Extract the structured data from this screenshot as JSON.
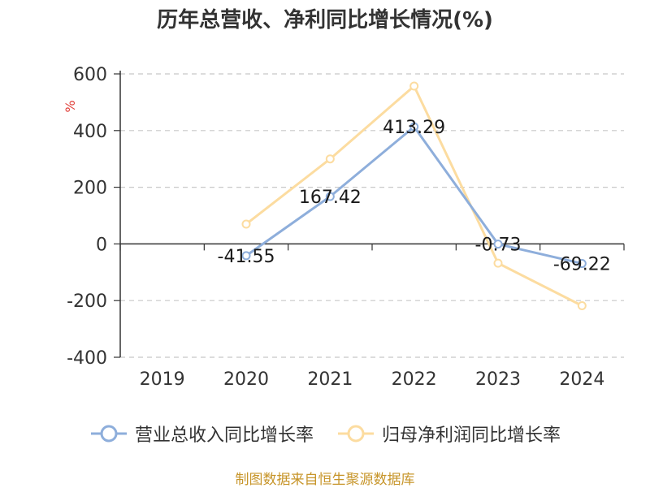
{
  "title": "历年总营收、净利同比增长情况(%)",
  "source": "制图数据来自恒生聚源数据库",
  "chart_data": {
    "type": "line",
    "title": "历年总营收、净利同比增长情况(%)",
    "ylabel": "%",
    "categories": [
      "2019",
      "2020",
      "2021",
      "2022",
      "2023",
      "2024"
    ],
    "ylim": [
      -400,
      600
    ],
    "yticks": [
      600,
      400,
      200,
      0,
      -200,
      -400
    ],
    "grid": true,
    "legend_position": "bottom",
    "series": [
      {
        "name": "营业总收入同比增长率",
        "color": "#8eaedb",
        "values": [
          null,
          -41.55,
          167.42,
          413.29,
          -0.73,
          -69.22
        ],
        "labels": [
          "",
          "-41.55",
          "167.42",
          "413.29",
          "-0.73",
          "-69.22"
        ]
      },
      {
        "name": "归母净利润同比增长率",
        "color": "#fcdca0",
        "values": [
          null,
          70,
          300,
          557,
          -68,
          -218
        ],
        "labels": []
      }
    ]
  }
}
